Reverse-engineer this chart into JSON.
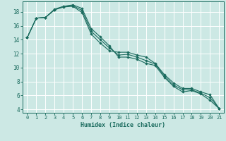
{
  "xlabel": "Humidex (Indice chaleur)",
  "bg_color": "#cce8e4",
  "grid_color": "#ffffff",
  "line_color": "#1a6b5e",
  "xlim": [
    -0.5,
    21.5
  ],
  "ylim": [
    3.5,
    19.5
  ],
  "xticks": [
    0,
    1,
    2,
    3,
    4,
    5,
    6,
    7,
    8,
    9,
    10,
    11,
    12,
    13,
    14,
    15,
    16,
    17,
    18,
    19,
    20,
    21
  ],
  "yticks": [
    4,
    6,
    8,
    10,
    12,
    14,
    16,
    18
  ],
  "series": [
    {
      "x": [
        0,
        1,
        2,
        3,
        4,
        5,
        6,
        7,
        8,
        9,
        10,
        11,
        12,
        13,
        14,
        15,
        16,
        17,
        18,
        19,
        20,
        21
      ],
      "y": [
        14.3,
        17.1,
        17.2,
        18.3,
        18.8,
        19.0,
        18.5,
        15.6,
        14.4,
        13.1,
        11.5,
        11.5,
        11.2,
        10.6,
        10.3,
        8.6,
        7.3,
        6.5,
        6.7,
        6.2,
        5.3,
        4.1
      ]
    },
    {
      "x": [
        0,
        1,
        2,
        3,
        4,
        5,
        6,
        7,
        8,
        9,
        10,
        11,
        12,
        13,
        14,
        15,
        16,
        17,
        18,
        19,
        20,
        21
      ],
      "y": [
        14.3,
        17.1,
        17.2,
        18.4,
        18.8,
        18.9,
        18.2,
        15.2,
        14.0,
        12.8,
        11.8,
        11.9,
        11.5,
        11.0,
        10.5,
        8.8,
        7.5,
        6.8,
        6.8,
        6.3,
        5.7,
        4.1
      ]
    },
    {
      "x": [
        0,
        1,
        2,
        3,
        4,
        5,
        6,
        7,
        8,
        9,
        10,
        11,
        12,
        13,
        14,
        15,
        16,
        17,
        18,
        19,
        20,
        21
      ],
      "y": [
        14.3,
        17.1,
        17.2,
        18.3,
        18.7,
        18.8,
        17.9,
        14.8,
        13.5,
        12.4,
        12.2,
        12.2,
        11.8,
        11.5,
        10.6,
        9.0,
        7.8,
        7.0,
        7.0,
        6.5,
        6.1,
        4.1
      ]
    }
  ]
}
